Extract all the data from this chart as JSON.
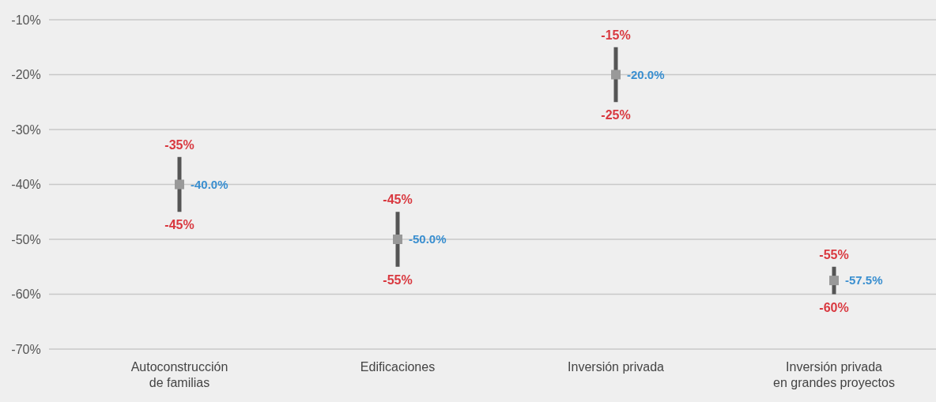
{
  "chart_data": {
    "type": "scatter",
    "categories": [
      "Autoconstrucción de familias",
      "Edificaciones",
      "Inversión privada",
      "Inversión privada en grandes proyectos"
    ],
    "series": [
      {
        "color": "#999999",
        "values": [
          -40,
          -50,
          -20,
          -57.5
        ],
        "errors": [
          [
            -45,
            -35
          ],
          [
            -55,
            -45
          ],
          [
            -25,
            -15
          ],
          [
            -60,
            -55
          ]
        ],
        "value_labels": [
          "-40.0%",
          "-50.0%",
          "-20.0%",
          "-57.5%"
        ]
      }
    ],
    "marker": "square",
    "grid": "y",
    "ylim": [
      -70,
      -10
    ],
    "yticks": [
      {
        "value": -70,
        "label": "-70%"
      },
      {
        "value": -60,
        "label": "-60%"
      },
      {
        "value": -50,
        "label": "-50%"
      },
      {
        "value": -40,
        "label": "-40%"
      },
      {
        "value": -30,
        "label": "-30%"
      },
      {
        "value": -20,
        "label": "-20%"
      },
      {
        "value": -10,
        "label": "-10%"
      }
    ],
    "annotations": [
      {
        "text": "-35%",
        "x": "Autoconstrucción de familias",
        "y": -35
      },
      {
        "text": "-45%",
        "x": "Autoconstrucción de familias",
        "y": -45
      },
      {
        "text": "-45%",
        "x": "Edificaciones",
        "y": -45
      },
      {
        "text": "-55%",
        "x": "Edificaciones",
        "y": -55
      },
      {
        "text": "-15%",
        "x": "Inversión privada",
        "y": -15
      },
      {
        "text": "-25%",
        "x": "Inversión privada",
        "y": -25
      },
      {
        "text": "-55%",
        "x": "Inversión privada en grandes proyectos",
        "y": -55
      },
      {
        "text": "-60%",
        "x": "Inversión privada en grandes proyectos",
        "y": -60
      }
    ]
  }
}
